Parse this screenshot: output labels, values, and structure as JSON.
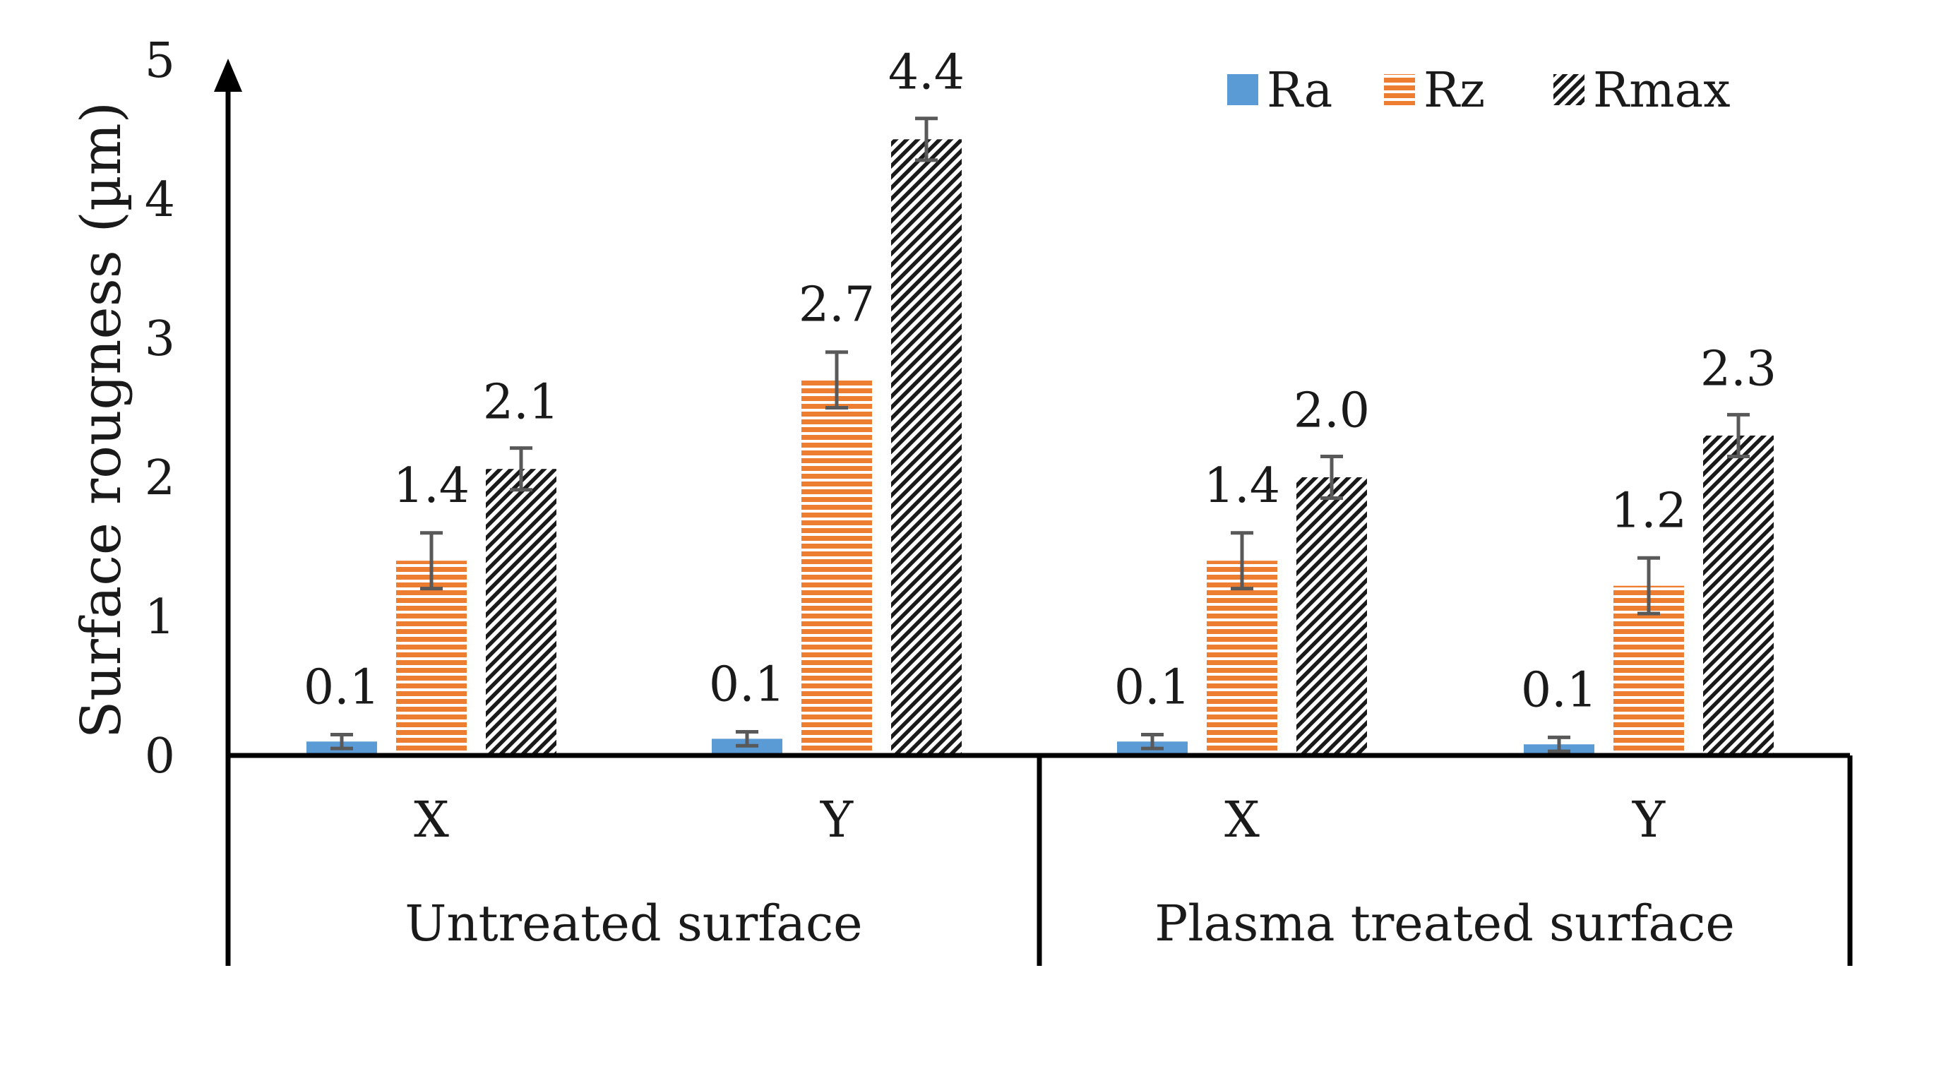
{
  "chart_data": {
    "type": "bar",
    "title": "",
    "ylabel": "Surface rougness (µm)",
    "xlabel": "",
    "ylim": [
      0,
      5
    ],
    "yticks": [
      "0",
      "1",
      "2",
      "3",
      "4",
      "5"
    ],
    "groups": [
      {
        "label": "Untreated surface",
        "categories": [
          "X",
          "Y"
        ]
      },
      {
        "label": "Plasma treated surface",
        "categories": [
          "X",
          "Y"
        ]
      }
    ],
    "categories": [
      "X",
      "Y",
      "X",
      "Y"
    ],
    "series": [
      {
        "name": "Ra",
        "color": "#5b9bd5",
        "pattern": "solid",
        "values": [
          0.1,
          0.12,
          0.1,
          0.08
        ],
        "errors": [
          0.05,
          0.05,
          0.05,
          0.05
        ],
        "labels": [
          "0.1",
          "0.1",
          "0.1",
          "0.1"
        ]
      },
      {
        "name": "Rz",
        "color": "#ed7d31",
        "pattern": "horizontal-lines",
        "values": [
          1.4,
          2.7,
          1.4,
          1.22
        ],
        "errors": [
          0.2,
          0.2,
          0.2,
          0.2
        ],
        "labels": [
          "1.4",
          "2.7",
          "1.4",
          "1.2"
        ]
      },
      {
        "name": "Rmax",
        "color": "#000000",
        "pattern": "diagonal-hatch",
        "values": [
          2.06,
          4.43,
          2.0,
          2.3
        ],
        "errors": [
          0.15,
          0.15,
          0.15,
          0.15
        ],
        "labels": [
          "2.1",
          "4.4",
          "2.0",
          "2.3"
        ]
      }
    ],
    "legend": {
      "position": "top-right",
      "entries": [
        "Ra",
        "Rz",
        "Rmax"
      ]
    }
  }
}
